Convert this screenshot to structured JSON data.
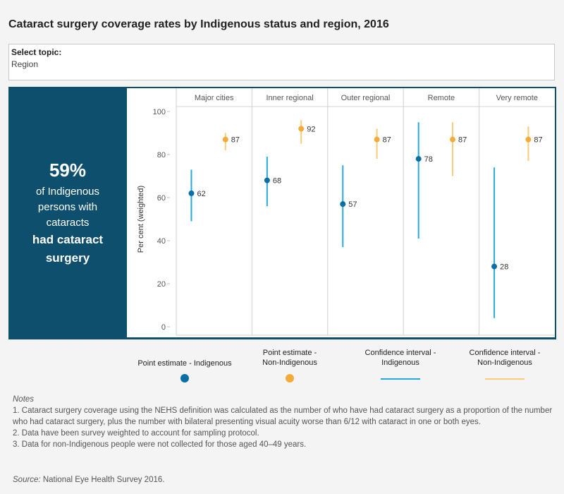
{
  "title": "Cataract surgery coverage rates by Indigenous status and region, 2016",
  "topic": {
    "label": "Select topic:",
    "value": "Region"
  },
  "kpi": {
    "value": "59%",
    "lines": [
      "of Indigenous",
      "persons with",
      "cataracts"
    ],
    "bold_lines": [
      "had cataract",
      "surgery"
    ]
  },
  "chart_data": {
    "type": "scatter",
    "ylabel": "Per cent (weighted)",
    "ylim": [
      0,
      100
    ],
    "yticks": [
      0,
      20,
      40,
      60,
      80,
      100
    ],
    "categories": [
      "Major cities",
      "Inner regional",
      "Outer regional",
      "Remote",
      "Very remote"
    ],
    "series": [
      {
        "name": "Indigenous",
        "color": "#0b6fa4",
        "ci_color": "#29a9d9",
        "values": [
          62,
          68,
          57,
          78,
          28
        ],
        "ci_low": [
          49,
          56,
          37,
          41,
          4
        ],
        "ci_high": [
          73,
          79,
          75,
          95,
          74
        ]
      },
      {
        "name": "Non-Indigenous",
        "color": "#f5ab3b",
        "ci_color": "#f8cc7c",
        "values": [
          87,
          92,
          87,
          87,
          87
        ],
        "ci_low": [
          82,
          85,
          78,
          70,
          77
        ],
        "ci_high": [
          90,
          96,
          92,
          95,
          93
        ]
      }
    ],
    "grid": false
  },
  "legend": {
    "items": [
      {
        "label": "Point estimate - Indigenous",
        "kind": "dot",
        "color": "#0b6fa4"
      },
      {
        "label": "Point estimate -\nNon-Indigenous",
        "kind": "dot",
        "color": "#f5ab3b"
      },
      {
        "label": "Confidence interval -\nIndigenous",
        "kind": "line",
        "color": "#29a9d9"
      },
      {
        "label": "Confidence interval -\nNon-Indigenous",
        "kind": "line",
        "color": "#f8cc7c"
      }
    ]
  },
  "notes": {
    "heading": "Notes",
    "items": [
      "1. Cataract surgery coverage using the NEHS definition was calculated as the number of who have had cataract surgery as a proportion of the number who had cataract surgery, plus the number with bilateral presenting visual acuity worse than 6/12 with cataract in one or both eyes.",
      "2. Data have been survey weighted to account for sampling protocol.",
      "3. Data for non-Indigenous people were not collected for those aged 40–49 years."
    ]
  },
  "source": {
    "label": "Source:",
    "text": "National Eye Health Survey 2016."
  }
}
